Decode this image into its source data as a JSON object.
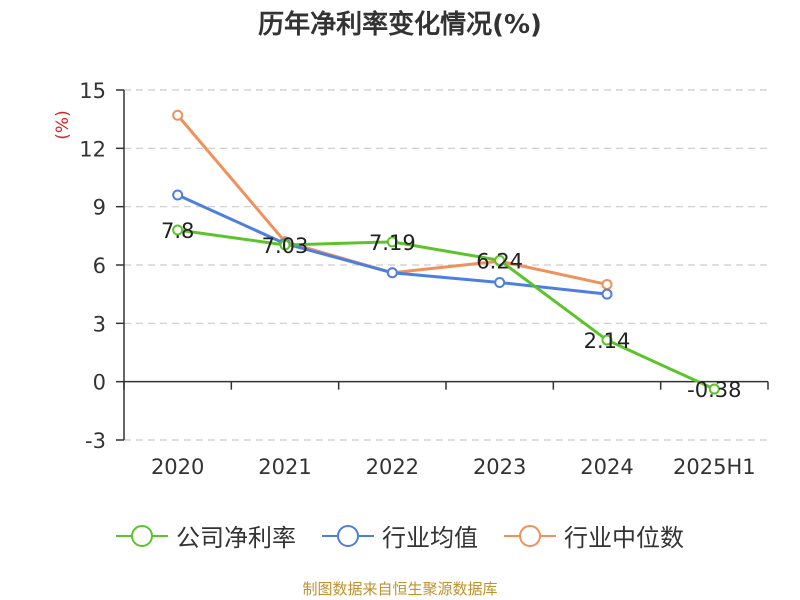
{
  "title": "历年净利率变化情况(%)",
  "source": "制图数据来自恒生聚源数据库",
  "chart_data": {
    "type": "line",
    "title": "历年净利率变化情况(%)",
    "ylabel": "(%)",
    "xlabel": "",
    "categories": [
      "2020",
      "2021",
      "2022",
      "2023",
      "2024",
      "2025H1"
    ],
    "ylim": [
      -3,
      15
    ],
    "yticks": [
      -3,
      0,
      3,
      6,
      9,
      12,
      15
    ],
    "grid": true,
    "legend_position": "bottom",
    "series": [
      {
        "name": "公司净利率",
        "color": "#5cc42a",
        "values": [
          7.8,
          7.03,
          7.19,
          6.24,
          2.14,
          -0.38
        ],
        "labels": [
          "7.8",
          "7.03",
          "7.19",
          "6.24",
          "2.14",
          "-0.38"
        ]
      },
      {
        "name": "行业均值",
        "color": "#4e7fde",
        "values": [
          9.6,
          7.1,
          5.6,
          5.1,
          4.5,
          null
        ]
      },
      {
        "name": "行业中位数",
        "color": "#f0905a",
        "values": [
          13.7,
          7.2,
          5.6,
          6.2,
          5.0,
          null
        ]
      }
    ]
  }
}
